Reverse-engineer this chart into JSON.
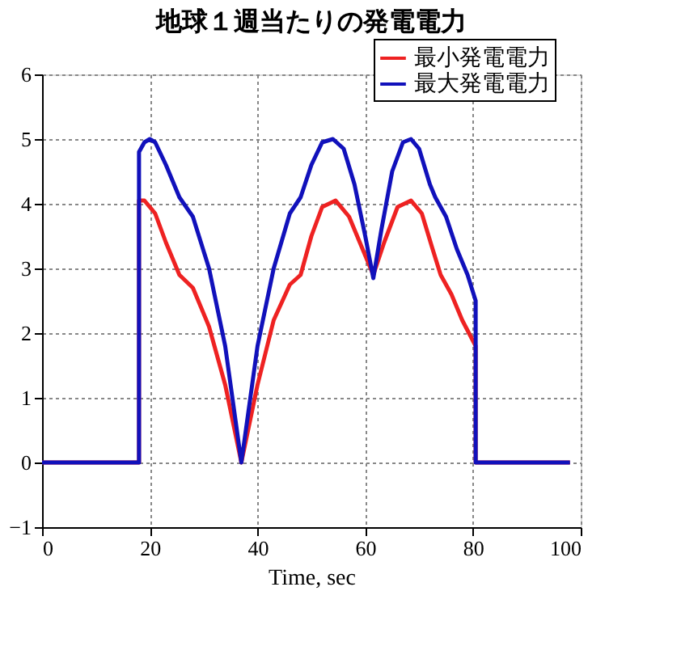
{
  "chart_data": {
    "type": "line",
    "title": "地球１週当たりの発電電力",
    "xlabel": "Time, sec",
    "xlim": [
      0,
      100
    ],
    "xticks": [
      0,
      20,
      40,
      60,
      80,
      100
    ],
    "ylim": [
      -1,
      6
    ],
    "yticks": [
      -1,
      0,
      1,
      2,
      3,
      4,
      5,
      6
    ],
    "grid": true,
    "legend": "top right",
    "line_style": "solid",
    "series": [
      {
        "name": "最小発電電力",
        "color": "#ee2222",
        "x": [
          0,
          18,
          18,
          19,
          21,
          23,
          25.5,
          28,
          31,
          34,
          37,
          40,
          43,
          46,
          48,
          50,
          52,
          54.5,
          57,
          59.5,
          61.5,
          63.5,
          66,
          68.5,
          70.5,
          72.5,
          74,
          76,
          78,
          80.5,
          80.5,
          98
        ],
        "values": [
          0,
          0,
          4.05,
          4.05,
          3.85,
          3.4,
          2.9,
          2.7,
          2.1,
          1.2,
          0,
          1.2,
          2.2,
          2.75,
          2.9,
          3.5,
          3.95,
          4.05,
          3.8,
          3.3,
          2.9,
          3.4,
          3.95,
          4.05,
          3.85,
          3.3,
          2.9,
          2.6,
          2.2,
          1.8,
          0,
          0
        ]
      },
      {
        "name": "最大発電電力",
        "color": "#1111bb",
        "x": [
          0,
          18,
          18,
          19,
          20,
          21,
          23,
          25.5,
          28,
          31,
          34,
          37,
          40,
          43,
          46,
          48,
          50,
          52,
          54,
          56,
          58,
          60,
          61.5,
          63,
          65,
          67,
          68.5,
          70,
          72,
          73,
          75,
          77,
          79,
          80.5,
          80.5,
          98
        ],
        "values": [
          0,
          0,
          4.8,
          4.95,
          5.0,
          4.95,
          4.6,
          4.1,
          3.8,
          3.0,
          1.8,
          0,
          1.8,
          3.0,
          3.85,
          4.1,
          4.6,
          4.95,
          5.0,
          4.85,
          4.3,
          3.5,
          2.85,
          3.6,
          4.5,
          4.95,
          5.0,
          4.85,
          4.3,
          4.1,
          3.8,
          3.3,
          2.9,
          2.5,
          0,
          0
        ]
      }
    ]
  }
}
